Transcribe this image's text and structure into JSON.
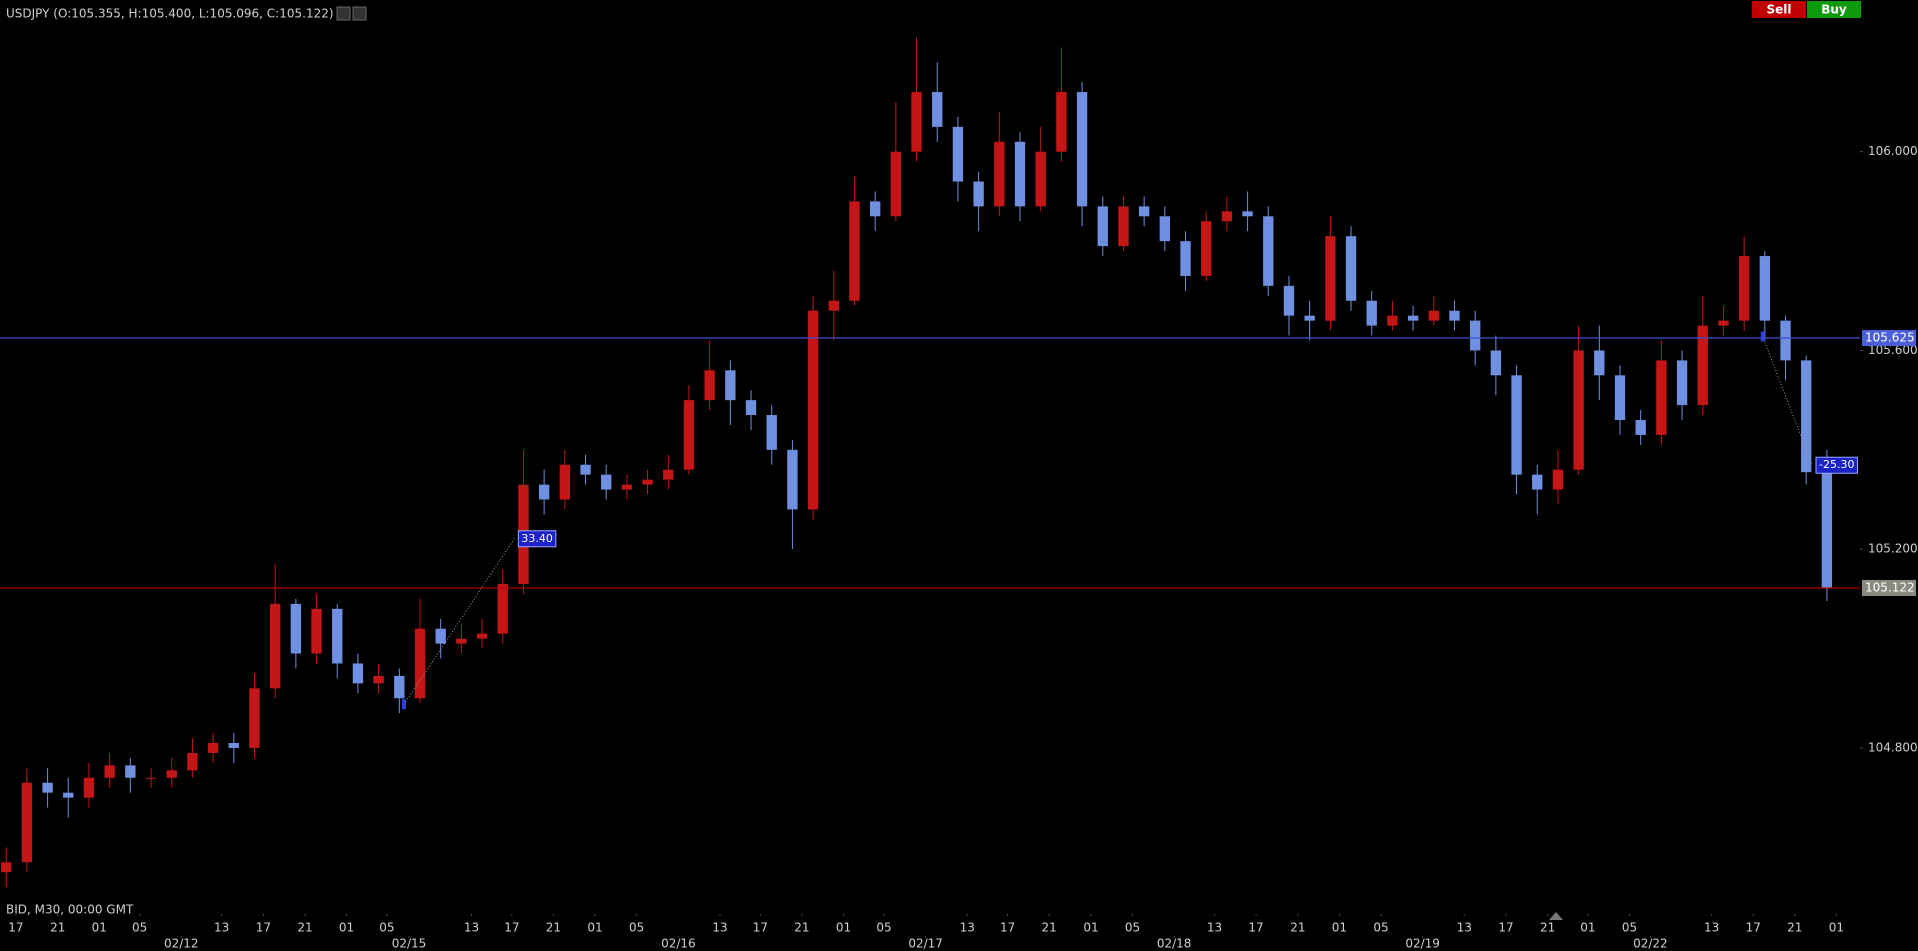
{
  "chart_data": {
    "type": "candlestick",
    "title": "USDJPY (O:105.355, H:105.400, L:105.096, C:105.122)",
    "footer": "BID, M30, 00:00 GMT",
    "up_color": "#c41616",
    "down_color": "#6f8fe0",
    "xlim": [
      -0.3,
      89.6
    ],
    "ylim": [
      104.494,
      106.256
    ],
    "yticks": [
      {
        "value": 104.8,
        "label": "104.800"
      },
      {
        "value": 105.2,
        "label": "105.200"
      },
      {
        "value": 105.6,
        "label": "105.600"
      },
      {
        "value": 106.0,
        "label": "106.000"
      }
    ],
    "xticks": [
      {
        "value": 0.47,
        "label": "17"
      },
      {
        "value": 2.49,
        "label": "21"
      },
      {
        "value": 4.5,
        "label": "01"
      },
      {
        "value": 6.45,
        "label": "05"
      },
      {
        "value": 10.41,
        "label": "13"
      },
      {
        "value": 12.43,
        "label": "17"
      },
      {
        "value": 14.44,
        "label": "21"
      },
      {
        "value": 16.45,
        "label": "01"
      },
      {
        "value": 18.4,
        "label": "05"
      },
      {
        "value": 22.49,
        "label": "13"
      },
      {
        "value": 24.44,
        "label": "17"
      },
      {
        "value": 26.45,
        "label": "21"
      },
      {
        "value": 28.46,
        "label": "01"
      },
      {
        "value": 30.47,
        "label": "05"
      },
      {
        "value": 34.5,
        "label": "13"
      },
      {
        "value": 36.45,
        "label": "17"
      },
      {
        "value": 38.46,
        "label": "21"
      },
      {
        "value": 40.47,
        "label": "01"
      },
      {
        "value": 42.43,
        "label": "05"
      },
      {
        "value": 46.45,
        "label": "13"
      },
      {
        "value": 48.4,
        "label": "17"
      },
      {
        "value": 50.41,
        "label": "21"
      },
      {
        "value": 52.43,
        "label": "01"
      },
      {
        "value": 54.44,
        "label": "05"
      },
      {
        "value": 58.4,
        "label": "13"
      },
      {
        "value": 60.41,
        "label": "17"
      },
      {
        "value": 62.43,
        "label": "21"
      },
      {
        "value": 64.44,
        "label": "01"
      },
      {
        "value": 66.45,
        "label": "05"
      },
      {
        "value": 70.47,
        "label": "13"
      },
      {
        "value": 72.49,
        "label": "17"
      },
      {
        "value": 74.5,
        "label": "21"
      },
      {
        "value": 76.45,
        "label": "01"
      },
      {
        "value": 78.46,
        "label": "05"
      },
      {
        "value": 82.43,
        "label": "13"
      },
      {
        "value": 84.44,
        "label": "17"
      },
      {
        "value": 86.45,
        "label": "21"
      },
      {
        "value": 88.46,
        "label": "01"
      }
    ],
    "date_ticks": [
      {
        "value": 8.46,
        "label": "02/12"
      },
      {
        "value": 19.47,
        "label": "02/15"
      },
      {
        "value": 32.49,
        "label": "02/16"
      },
      {
        "value": 44.44,
        "label": "02/17"
      },
      {
        "value": 56.45,
        "label": "02/18"
      },
      {
        "value": 68.46,
        "label": "02/19"
      },
      {
        "value": 79.47,
        "label": "02/22"
      }
    ],
    "ohlc": {
      "open": [
        104.55,
        104.57,
        104.73,
        104.71,
        104.7,
        104.74,
        104.765,
        104.74,
        104.74,
        104.755,
        104.79,
        104.81,
        104.8,
        104.92,
        105.09,
        104.99,
        105.08,
        104.97,
        104.93,
        104.945,
        104.9,
        105.04,
        105.01,
        105.02,
        105.03,
        105.13,
        105.33,
        105.3,
        105.37,
        105.35,
        105.32,
        105.33,
        105.34,
        105.36,
        105.5,
        105.56,
        105.5,
        105.47,
        105.4,
        105.28,
        105.68,
        105.7,
        105.9,
        105.87,
        106.0,
        106.12,
        106.05,
        105.94,
        105.89,
        106.02,
        105.89,
        106.0,
        106.12,
        105.89,
        105.81,
        105.89,
        105.87,
        105.82,
        105.75,
        105.86,
        105.88,
        105.87,
        105.73,
        105.67,
        105.66,
        105.83,
        105.7,
        105.65,
        105.67,
        105.66,
        105.68,
        105.66,
        105.6,
        105.55,
        105.35,
        105.32,
        105.36,
        105.6,
        105.55,
        105.46,
        105.43,
        105.58,
        105.49,
        105.65,
        105.66,
        105.79,
        105.66,
        105.58,
        105.355
      ],
      "high": [
        104.6,
        104.76,
        104.76,
        104.74,
        104.77,
        104.79,
        104.78,
        104.76,
        104.78,
        104.82,
        104.83,
        104.83,
        104.95,
        105.17,
        105.1,
        105.11,
        105.09,
        104.99,
        104.97,
        104.96,
        105.1,
        105.06,
        105.05,
        105.06,
        105.16,
        105.4,
        105.36,
        105.4,
        105.39,
        105.37,
        105.35,
        105.36,
        105.39,
        105.53,
        105.62,
        105.58,
        105.52,
        105.49,
        105.42,
        105.71,
        105.76,
        105.95,
        105.92,
        106.1,
        106.23,
        106.18,
        106.07,
        105.96,
        106.08,
        106.04,
        106.05,
        106.21,
        106.14,
        105.91,
        105.91,
        105.91,
        105.89,
        105.84,
        105.88,
        105.91,
        105.92,
        105.89,
        105.75,
        105.7,
        105.87,
        105.85,
        105.72,
        105.7,
        105.69,
        105.71,
        105.7,
        105.68,
        105.63,
        105.57,
        105.37,
        105.4,
        105.65,
        105.65,
        105.57,
        105.48,
        105.62,
        105.6,
        105.71,
        105.69,
        105.83,
        105.8,
        105.67,
        105.59,
        105.4
      ],
      "low": [
        104.52,
        104.55,
        104.68,
        104.66,
        104.68,
        104.72,
        104.71,
        104.72,
        104.72,
        104.74,
        104.77,
        104.77,
        104.78,
        104.9,
        104.96,
        104.97,
        104.94,
        104.91,
        104.91,
        104.87,
        104.89,
        104.98,
        104.99,
        105.0,
        105.01,
        105.11,
        105.27,
        105.28,
        105.33,
        105.3,
        105.3,
        105.31,
        105.32,
        105.35,
        105.48,
        105.45,
        105.44,
        105.37,
        105.2,
        105.26,
        105.62,
        105.69,
        105.84,
        105.86,
        105.98,
        106.02,
        105.9,
        105.84,
        105.87,
        105.86,
        105.88,
        105.98,
        105.85,
        105.79,
        105.8,
        105.85,
        105.8,
        105.72,
        105.74,
        105.84,
        105.84,
        105.71,
        105.63,
        105.62,
        105.64,
        105.68,
        105.63,
        105.64,
        105.64,
        105.65,
        105.64,
        105.57,
        105.51,
        105.31,
        105.27,
        105.29,
        105.35,
        105.5,
        105.43,
        105.41,
        105.41,
        105.46,
        105.47,
        105.63,
        105.64,
        105.62,
        105.54,
        105.33,
        105.096
      ],
      "close": [
        104.57,
        104.73,
        104.71,
        104.7,
        104.74,
        104.765,
        104.74,
        104.74,
        104.755,
        104.79,
        104.81,
        104.8,
        104.92,
        105.09,
        104.99,
        105.08,
        104.97,
        104.93,
        104.945,
        104.9,
        105.04,
        105.01,
        105.02,
        105.03,
        105.13,
        105.33,
        105.3,
        105.37,
        105.35,
        105.32,
        105.33,
        105.34,
        105.36,
        105.5,
        105.56,
        105.5,
        105.47,
        105.4,
        105.28,
        105.68,
        105.7,
        105.9,
        105.87,
        106.0,
        106.12,
        106.05,
        105.94,
        105.89,
        106.02,
        105.89,
        106.0,
        106.12,
        105.89,
        105.81,
        105.89,
        105.87,
        105.82,
        105.75,
        105.86,
        105.88,
        105.87,
        105.73,
        105.67,
        105.66,
        105.83,
        105.7,
        105.65,
        105.67,
        105.66,
        105.68,
        105.66,
        105.6,
        105.55,
        105.35,
        105.32,
        105.36,
        105.6,
        105.55,
        105.46,
        105.43,
        105.58,
        105.49,
        105.65,
        105.66,
        105.79,
        105.66,
        105.58,
        105.355,
        105.122
      ]
    },
    "levels": [
      {
        "value": 105.625,
        "label": "105.625",
        "color": "#3c4fd0",
        "label_bg": "#4a5fd8"
      },
      {
        "value": 105.122,
        "label": "105.122",
        "color": "#c00000",
        "label_bg": "#8a8a80"
      }
    ],
    "measures": [
      {
        "label": "33.40",
        "from": [
          19.23,
          104.888
        ],
        "to": [
          24.56,
          105.221
        ]
      },
      {
        "label": "-25.30",
        "from": [
          84.9,
          105.628
        ],
        "to": [
          87.28,
          105.369
        ]
      }
    ]
  },
  "toolbar": {
    "sell": "Sell",
    "buy": "Buy"
  }
}
